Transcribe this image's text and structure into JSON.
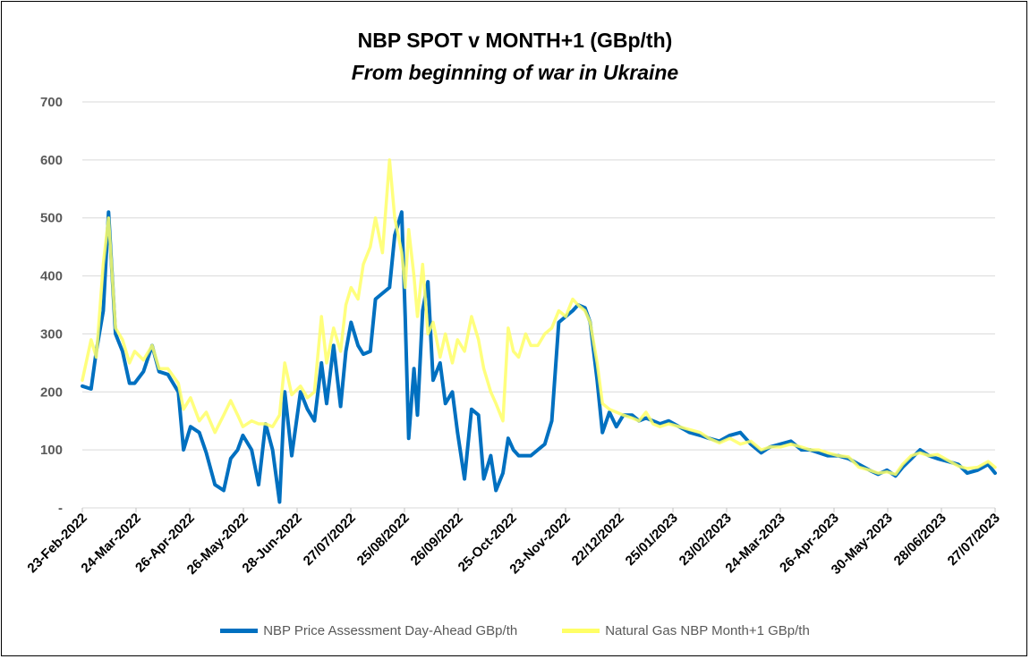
{
  "chart_data": {
    "type": "line",
    "title": "NBP SPOT v MONTH+1  (GBp/th)",
    "subtitle": "From beginning of war in Ukraine",
    "xlabel": "",
    "ylabel": "",
    "ylim": [
      0,
      700
    ],
    "yticks": [
      0,
      100,
      200,
      300,
      400,
      500,
      600,
      700
    ],
    "ytick_labels": [
      "-",
      "100",
      "200",
      "300",
      "400",
      "500",
      "600",
      "700"
    ],
    "grid": "horizontal",
    "legend_position": "bottom",
    "xtick_labels": [
      "23-Feb-2022",
      "24-Mar-2022",
      "26-Apr-2022",
      "26-May-2022",
      "28-Jun-2022",
      "27/07/2022",
      "25/08/2022",
      "26/09/2022",
      "25-Oct-2022",
      "23-Nov-2022",
      "22/12/2022",
      "25/01/2023",
      "23/02/2023",
      "24-Mar-2023",
      "26-Apr-2023",
      "30-May-2023",
      "28/06/2023",
      "27/07/2023"
    ],
    "x": [
      "2022-02-23",
      "2022-02-28",
      "2022-03-03",
      "2022-03-07",
      "2022-03-10",
      "2022-03-14",
      "2022-03-18",
      "2022-03-22",
      "2022-03-25",
      "2022-03-30",
      "2022-04-04",
      "2022-04-08",
      "2022-04-13",
      "2022-04-19",
      "2022-04-22",
      "2022-04-26",
      "2022-05-01",
      "2022-05-05",
      "2022-05-10",
      "2022-05-15",
      "2022-05-19",
      "2022-05-23",
      "2022-05-26",
      "2022-05-31",
      "2022-06-04",
      "2022-06-08",
      "2022-06-12",
      "2022-06-16",
      "2022-06-19",
      "2022-06-23",
      "2022-06-28",
      "2022-07-02",
      "2022-07-06",
      "2022-07-10",
      "2022-07-13",
      "2022-07-17",
      "2022-07-21",
      "2022-07-24",
      "2022-07-27",
      "2022-07-31",
      "2022-08-03",
      "2022-08-07",
      "2022-08-10",
      "2022-08-14",
      "2022-08-18",
      "2022-08-21",
      "2022-08-25",
      "2022-08-27",
      "2022-08-29",
      "2022-09-01",
      "2022-09-03",
      "2022-09-06",
      "2022-09-09",
      "2022-09-12",
      "2022-09-16",
      "2022-09-19",
      "2022-09-23",
      "2022-09-26",
      "2022-09-30",
      "2022-10-04",
      "2022-10-08",
      "2022-10-11",
      "2022-10-15",
      "2022-10-18",
      "2022-10-22",
      "2022-10-25",
      "2022-10-28",
      "2022-10-31",
      "2022-11-04",
      "2022-11-07",
      "2022-11-11",
      "2022-11-15",
      "2022-11-19",
      "2022-11-23",
      "2022-11-27",
      "2022-12-01",
      "2022-12-04",
      "2022-12-08",
      "2022-12-11",
      "2022-12-15",
      "2022-12-18",
      "2022-12-22",
      "2022-12-26",
      "2022-12-30",
      "2023-01-04",
      "2023-01-08",
      "2023-01-12",
      "2023-01-16",
      "2023-01-20",
      "2023-01-25",
      "2023-01-31",
      "2023-02-06",
      "2023-02-12",
      "2023-02-17",
      "2023-02-23",
      "2023-03-01",
      "2023-03-07",
      "2023-03-13",
      "2023-03-19",
      "2023-03-24",
      "2023-03-30",
      "2023-04-05",
      "2023-04-11",
      "2023-04-16",
      "2023-04-21",
      "2023-04-26",
      "2023-05-02",
      "2023-05-08",
      "2023-05-14",
      "2023-05-20",
      "2023-05-25",
      "2023-05-30",
      "2023-06-04",
      "2023-06-08",
      "2023-06-13",
      "2023-06-18",
      "2023-06-23",
      "2023-06-28",
      "2023-07-04",
      "2023-07-10",
      "2023-07-15",
      "2023-07-21",
      "2023-07-27",
      "2023-07-31"
    ],
    "series": [
      {
        "name": "NBP Price Assessment Day-Ahead GBp/th",
        "color": "#0070C0",
        "values": [
          210,
          205,
          270,
          340,
          510,
          300,
          270,
          215,
          215,
          235,
          280,
          235,
          230,
          200,
          100,
          140,
          130,
          95,
          40,
          30,
          85,
          100,
          125,
          100,
          40,
          145,
          100,
          10,
          200,
          90,
          200,
          170,
          150,
          250,
          180,
          280,
          175,
          270,
          320,
          280,
          265,
          270,
          360,
          370,
          380,
          470,
          510,
          330,
          120,
          240,
          160,
          340,
          390,
          220,
          250,
          180,
          200,
          130,
          50,
          170,
          160,
          50,
          90,
          30,
          60,
          120,
          100,
          90,
          90,
          90,
          100,
          110,
          150,
          320,
          330,
          340,
          350,
          345,
          320,
          220,
          130,
          165,
          140,
          160,
          160,
          150,
          155,
          150,
          145,
          150,
          140,
          130,
          125,
          120,
          115,
          125,
          130,
          110,
          95,
          105,
          110,
          115,
          100,
          100,
          95,
          90,
          90,
          85,
          75,
          65,
          58,
          65,
          55,
          70,
          85,
          100,
          90,
          85,
          80,
          75,
          60,
          65,
          75,
          60
        ]
      },
      {
        "name": "Natural Gas NBP Month+1 GBp/th",
        "color": "#FFFF66",
        "values": [
          220,
          290,
          260,
          420,
          500,
          310,
          290,
          250,
          270,
          255,
          280,
          240,
          240,
          215,
          170,
          190,
          150,
          165,
          130,
          160,
          185,
          160,
          140,
          150,
          145,
          145,
          140,
          160,
          250,
          195,
          210,
          190,
          200,
          330,
          250,
          310,
          270,
          350,
          380,
          360,
          420,
          450,
          500,
          440,
          600,
          500,
          440,
          380,
          480,
          400,
          330,
          420,
          300,
          320,
          260,
          300,
          250,
          290,
          270,
          330,
          290,
          240,
          200,
          180,
          150,
          310,
          270,
          260,
          300,
          280,
          280,
          300,
          310,
          340,
          330,
          360,
          350,
          340,
          320,
          250,
          180,
          170,
          165,
          160,
          155,
          150,
          165,
          145,
          140,
          145,
          140,
          135,
          130,
          120,
          112,
          120,
          110,
          115,
          100,
          105,
          105,
          110,
          105,
          100,
          100,
          95,
          90,
          88,
          70,
          65,
          60,
          62,
          58,
          75,
          90,
          95,
          90,
          92,
          82,
          72,
          68,
          70,
          80,
          70
        ]
      }
    ]
  }
}
